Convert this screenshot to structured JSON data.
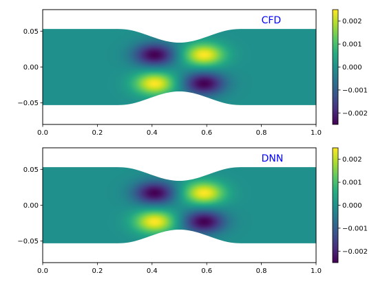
{
  "chart_data": [
    {
      "type": "heatmap",
      "label": "CFD",
      "label_color": "#0000ff",
      "label_position": "top-right",
      "colormap": "viridis",
      "background": "#21918c",
      "xlim": [
        0,
        1
      ],
      "ylim": [
        -0.08,
        0.08
      ],
      "x_ticks": [
        "0.0",
        "0.2",
        "0.4",
        "0.6",
        "0.8",
        "1.0"
      ],
      "y_ticks": [
        "0.05",
        "0.00",
        "−0.05"
      ],
      "y_tick_values": [
        0.05,
        0.0,
        -0.05
      ],
      "channel": {
        "half_width": 0.053,
        "throat_half_width": 0.034,
        "throat_x": 0.5,
        "constriction_range": [
          0.28,
          0.72
        ]
      },
      "colorbar": {
        "range": [
          -0.0025,
          0.0025
        ],
        "ticks": [
          "0.002",
          "0.001",
          "0.000",
          "−0.001",
          "−0.002"
        ],
        "tick_values": [
          0.002,
          0.001,
          0.0,
          -0.001,
          -0.002
        ]
      },
      "extrema": [
        {
          "x": 0.41,
          "y": 0.017,
          "value": -0.0025
        },
        {
          "x": 0.59,
          "y": 0.017,
          "value": 0.0025
        },
        {
          "x": 0.41,
          "y": -0.023,
          "value": 0.0025
        },
        {
          "x": 0.59,
          "y": -0.023,
          "value": -0.0025
        }
      ],
      "grid": false
    },
    {
      "type": "heatmap",
      "label": "DNN",
      "label_color": "#0000ff",
      "label_position": "top-right",
      "colormap": "viridis",
      "background": "#21918c",
      "xlim": [
        0,
        1
      ],
      "ylim": [
        -0.08,
        0.08
      ],
      "x_ticks": [
        "0.0",
        "0.2",
        "0.4",
        "0.6",
        "0.8",
        "1.0"
      ],
      "y_ticks": [
        "0.05",
        "0.00",
        "−0.05"
      ],
      "y_tick_values": [
        0.05,
        0.0,
        -0.05
      ],
      "channel": {
        "half_width": 0.053,
        "throat_half_width": 0.034,
        "throat_x": 0.5,
        "constriction_range": [
          0.28,
          0.72
        ]
      },
      "colorbar": {
        "range": [
          -0.0025,
          0.0025
        ],
        "ticks": [
          "0.002",
          "0.001",
          "0.000",
          "−0.001",
          "−0.002"
        ],
        "tick_values": [
          0.002,
          0.001,
          0.0,
          -0.001,
          -0.002
        ]
      },
      "extrema": [
        {
          "x": 0.41,
          "y": 0.017,
          "value": -0.0025
        },
        {
          "x": 0.59,
          "y": 0.017,
          "value": 0.0025
        },
        {
          "x": 0.41,
          "y": -0.023,
          "value": 0.0025
        },
        {
          "x": 0.59,
          "y": -0.023,
          "value": -0.0025
        }
      ],
      "grid": false
    }
  ]
}
